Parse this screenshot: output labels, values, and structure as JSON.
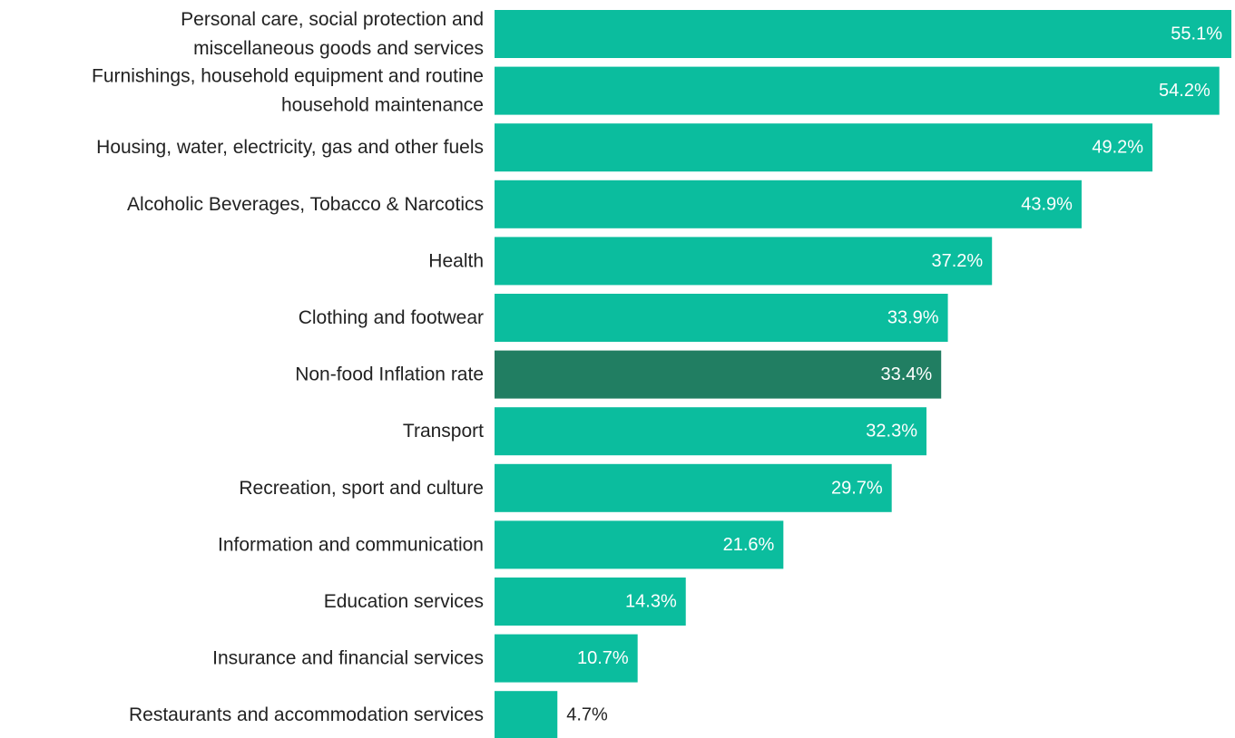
{
  "chart_data": {
    "type": "bar",
    "orientation": "horizontal",
    "title": "",
    "xlabel": "",
    "ylabel": "",
    "xlim": [
      0,
      55.1
    ],
    "grid": false,
    "legend": "none",
    "value_suffix": "%",
    "colors": {
      "default": "#0bbd9e",
      "highlight": "#217e62",
      "label_inside": "#ffffff",
      "label_outside": "#222222"
    },
    "categories": [
      "Personal care, social protection and\nmiscellaneous goods and services",
      "Furnishings, household equipment and routine\nhousehold maintenance",
      "Housing, water, electricity, gas and other fuels",
      "Alcoholic Beverages, Tobacco & Narcotics",
      "Health",
      "Clothing and footwear",
      "Non-food Inflation rate",
      "Transport",
      "Recreation, sport and culture",
      "Information and communication",
      "Education services",
      "Insurance and financial services",
      "Restaurants and accommodation services"
    ],
    "values": [
      55.1,
      54.2,
      49.2,
      43.9,
      37.2,
      33.9,
      33.4,
      32.3,
      29.7,
      21.6,
      14.3,
      10.7,
      4.7
    ],
    "value_labels": [
      "55.1%",
      "54.2%",
      "49.2%",
      "43.9%",
      "37.2%",
      "33.9%",
      "33.4%",
      "32.3%",
      "29.7%",
      "21.6%",
      "14.3%",
      "10.7%",
      "4.7%"
    ],
    "highlight": [
      "Non-food Inflation rate"
    ]
  }
}
